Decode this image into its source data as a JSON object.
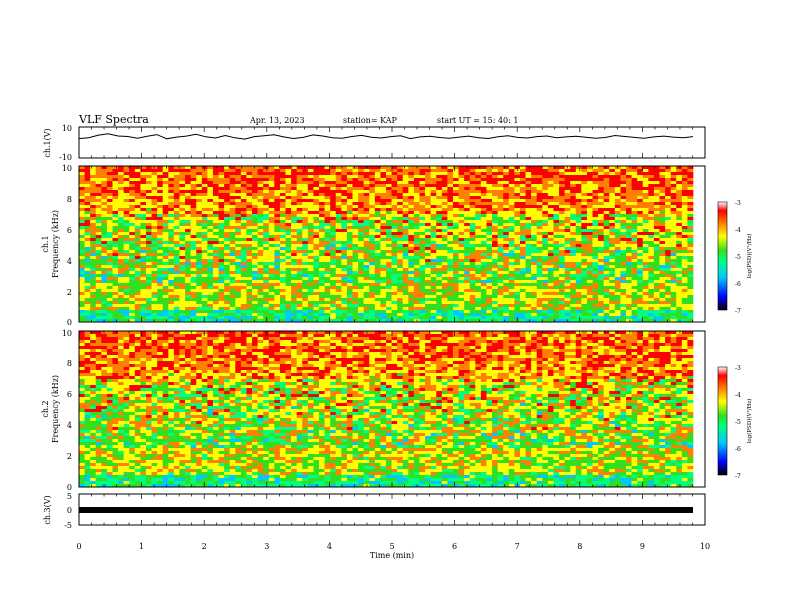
{
  "header": {
    "title": "VLF Spectra",
    "date": "Apr. 13, 2023",
    "station": "station= KAP",
    "start": "start  UT =   15: 40: 1"
  },
  "chart_data": [
    {
      "type": "line",
      "ylabel": "ch.1(V)",
      "ylim": [
        -10,
        10
      ],
      "yticks": [
        "10",
        "-10"
      ],
      "xlim": [
        0,
        10
      ],
      "series": [
        {
          "values_note_free": true,
          "values": [
            2.5,
            3.1,
            4.8,
            5.6,
            4.2,
            3.9,
            2.8,
            4.0,
            5.1,
            2.4,
            3.5,
            4.1,
            5.3,
            3.7,
            2.9,
            4.5,
            3.0,
            2.2,
            3.8,
            4.4,
            5.0,
            3.6,
            2.6,
            3.3,
            4.9,
            4.2,
            3.1,
            2.7,
            3.9,
            4.6,
            3.4,
            2.9,
            3.8,
            4.3,
            2.5,
            3.6,
            4.0,
            3.2,
            2.8,
            3.5,
            4.1,
            3.0,
            2.6,
            3.7,
            4.4,
            3.3,
            2.9,
            3.8,
            4.2,
            3.1,
            3.6,
            4.0,
            3.4,
            2.8,
            3.2,
            4.5,
            3.9,
            3.3,
            2.7,
            3.6,
            4.1,
            3.5,
            3.0,
            3.8
          ]
        }
      ]
    },
    {
      "type": "heatmap",
      "ylabel": "ch.1",
      "ylabel2": "Frequency (kHz)",
      "ylim": [
        0,
        10
      ],
      "yticks": [
        "0",
        "2",
        "4",
        "6",
        "8",
        "10"
      ],
      "xlim": [
        0,
        10
      ],
      "colorbar": {
        "label": "log(PSD)(V²/Hz)",
        "range": [
          -7,
          -3
        ],
        "ticks": [
          "-3",
          "-4",
          "-5",
          "-6",
          "-7"
        ]
      }
    },
    {
      "type": "heatmap",
      "ylabel": "ch.2",
      "ylabel2": "Frequency (kHz)",
      "ylim": [
        0,
        10
      ],
      "yticks": [
        "0",
        "2",
        "4",
        "6",
        "8",
        "10"
      ],
      "xlim": [
        0,
        10
      ],
      "colorbar": {
        "label": "log(PSD)(V²/Hz)",
        "range": [
          -7,
          -3
        ],
        "ticks": [
          "-3",
          "-4",
          "-5",
          "-6",
          "-7"
        ]
      }
    },
    {
      "type": "line",
      "ylabel": "ch.3(V)",
      "ylim": [
        -5,
        5
      ],
      "yticks": [
        "5",
        "0",
        "-5"
      ],
      "xlim": [
        0,
        10
      ],
      "xlabel": "Time (min)",
      "xticks": [
        "0",
        "1",
        "2",
        "3",
        "4",
        "5",
        "6",
        "7",
        "8",
        "9",
        "10"
      ],
      "series": [
        {
          "values": [
            0,
            0
          ]
        }
      ]
    }
  ],
  "colors": {
    "colormap": [
      "#000000",
      "#0000ff",
      "#00c8ff",
      "#00ff80",
      "#30e020",
      "#ffff00",
      "#ff8000",
      "#ff0000",
      "#ffffff"
    ]
  }
}
